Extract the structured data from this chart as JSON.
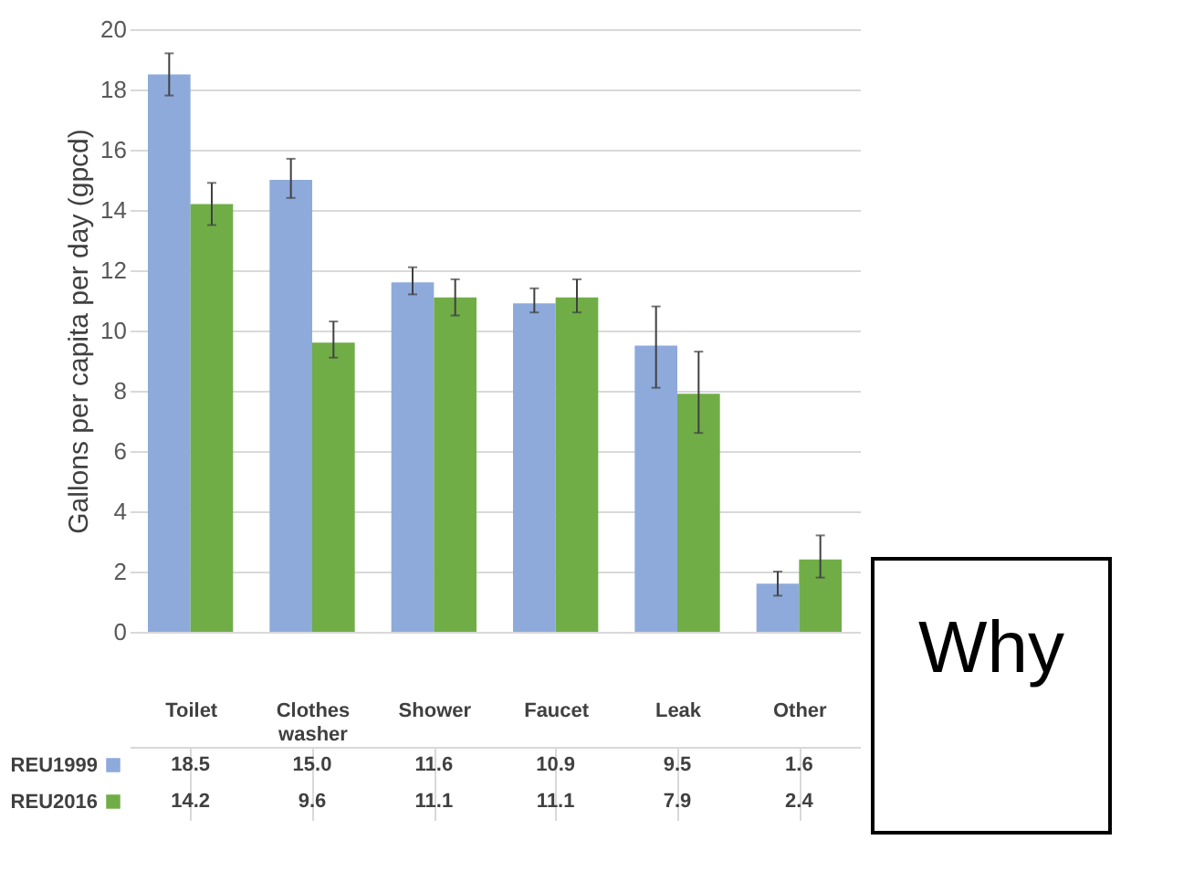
{
  "chart_data": {
    "type": "bar",
    "ylabel": "Gallons per capita per day (gpcd)",
    "categories": [
      "Toilet",
      "Clothes washer",
      "Shower",
      "Faucet",
      "Leak",
      "Other"
    ],
    "series": [
      {
        "name": "REU1999",
        "color": "#8eaadb",
        "values": [
          18.5,
          15.0,
          11.6,
          10.9,
          9.5,
          1.6
        ],
        "value_labels": [
          "18.5",
          "15.0",
          "11.6",
          "10.9",
          "9.5",
          "1.6"
        ],
        "errors": [
          [
            17.8,
            19.2
          ],
          [
            14.4,
            15.7
          ],
          [
            11.2,
            12.1
          ],
          [
            10.6,
            11.4
          ],
          [
            8.1,
            10.8
          ],
          [
            1.2,
            2.0
          ]
        ]
      },
      {
        "name": "REU2016",
        "color": "#70ad47",
        "values": [
          14.2,
          9.6,
          11.1,
          11.1,
          7.9,
          2.4
        ],
        "value_labels": [
          "14.2",
          "9.6",
          "11.1",
          "11.1",
          "7.9",
          "2.4"
        ],
        "errors": [
          [
            13.5,
            14.9
          ],
          [
            9.1,
            10.3
          ],
          [
            10.5,
            11.7
          ],
          [
            10.6,
            11.7
          ],
          [
            6.6,
            9.3
          ],
          [
            1.8,
            3.2
          ]
        ]
      }
    ],
    "ylim": [
      0,
      20
    ],
    "yticks": [
      0,
      2,
      4,
      6,
      8,
      10,
      12,
      14,
      16,
      18,
      20
    ],
    "grid": "y",
    "legend": "bottom",
    "annotations": [
      "Why"
    ]
  }
}
